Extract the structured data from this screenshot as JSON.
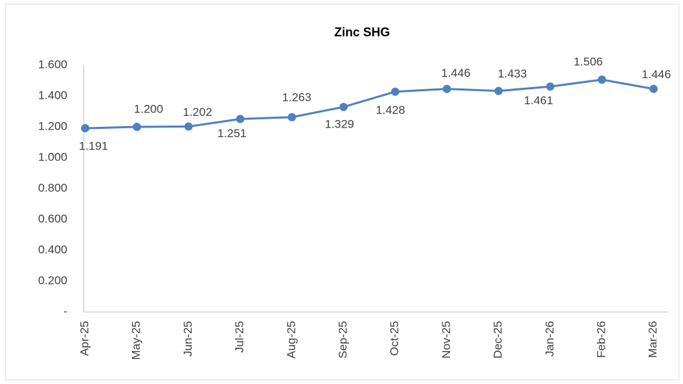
{
  "chart_data": {
    "type": "line",
    "title": "Zinc SHG",
    "categories": [
      "Apr-25",
      "May-25",
      "Jun-25",
      "Jul-25",
      "Aug-25",
      "Sep-25",
      "Oct-25",
      "Nov-25",
      "Dec-25",
      "Jan-26",
      "Feb-26",
      "Mar-26"
    ],
    "series": [
      {
        "name": "Zinc SHG",
        "color": "#4f81bd",
        "values": [
          1.191,
          1.2,
          1.202,
          1.251,
          1.263,
          1.329,
          1.428,
          1.446,
          1.433,
          1.461,
          1.506,
          1.446
        ],
        "value_labels": [
          "1.191",
          "1.200",
          "1.202",
          "1.251",
          "1.263",
          "1.329",
          "1.428",
          "1.446",
          "1.433",
          "1.461",
          "1.506",
          "1.446"
        ]
      }
    ],
    "ylim": [
      0,
      1.6
    ],
    "yticks": [
      {
        "value": 0,
        "label": "-"
      },
      {
        "value": 0.2,
        "label": "0.200"
      },
      {
        "value": 0.4,
        "label": "0.400"
      },
      {
        "value": 0.6,
        "label": "0.600"
      },
      {
        "value": 0.8,
        "label": "0.800"
      },
      {
        "value": 1.0,
        "label": "1.000"
      },
      {
        "value": 1.2,
        "label": "1.200"
      },
      {
        "value": 1.4,
        "label": "1.400"
      },
      {
        "value": 1.6,
        "label": "1.600"
      }
    ],
    "grid": false
  }
}
